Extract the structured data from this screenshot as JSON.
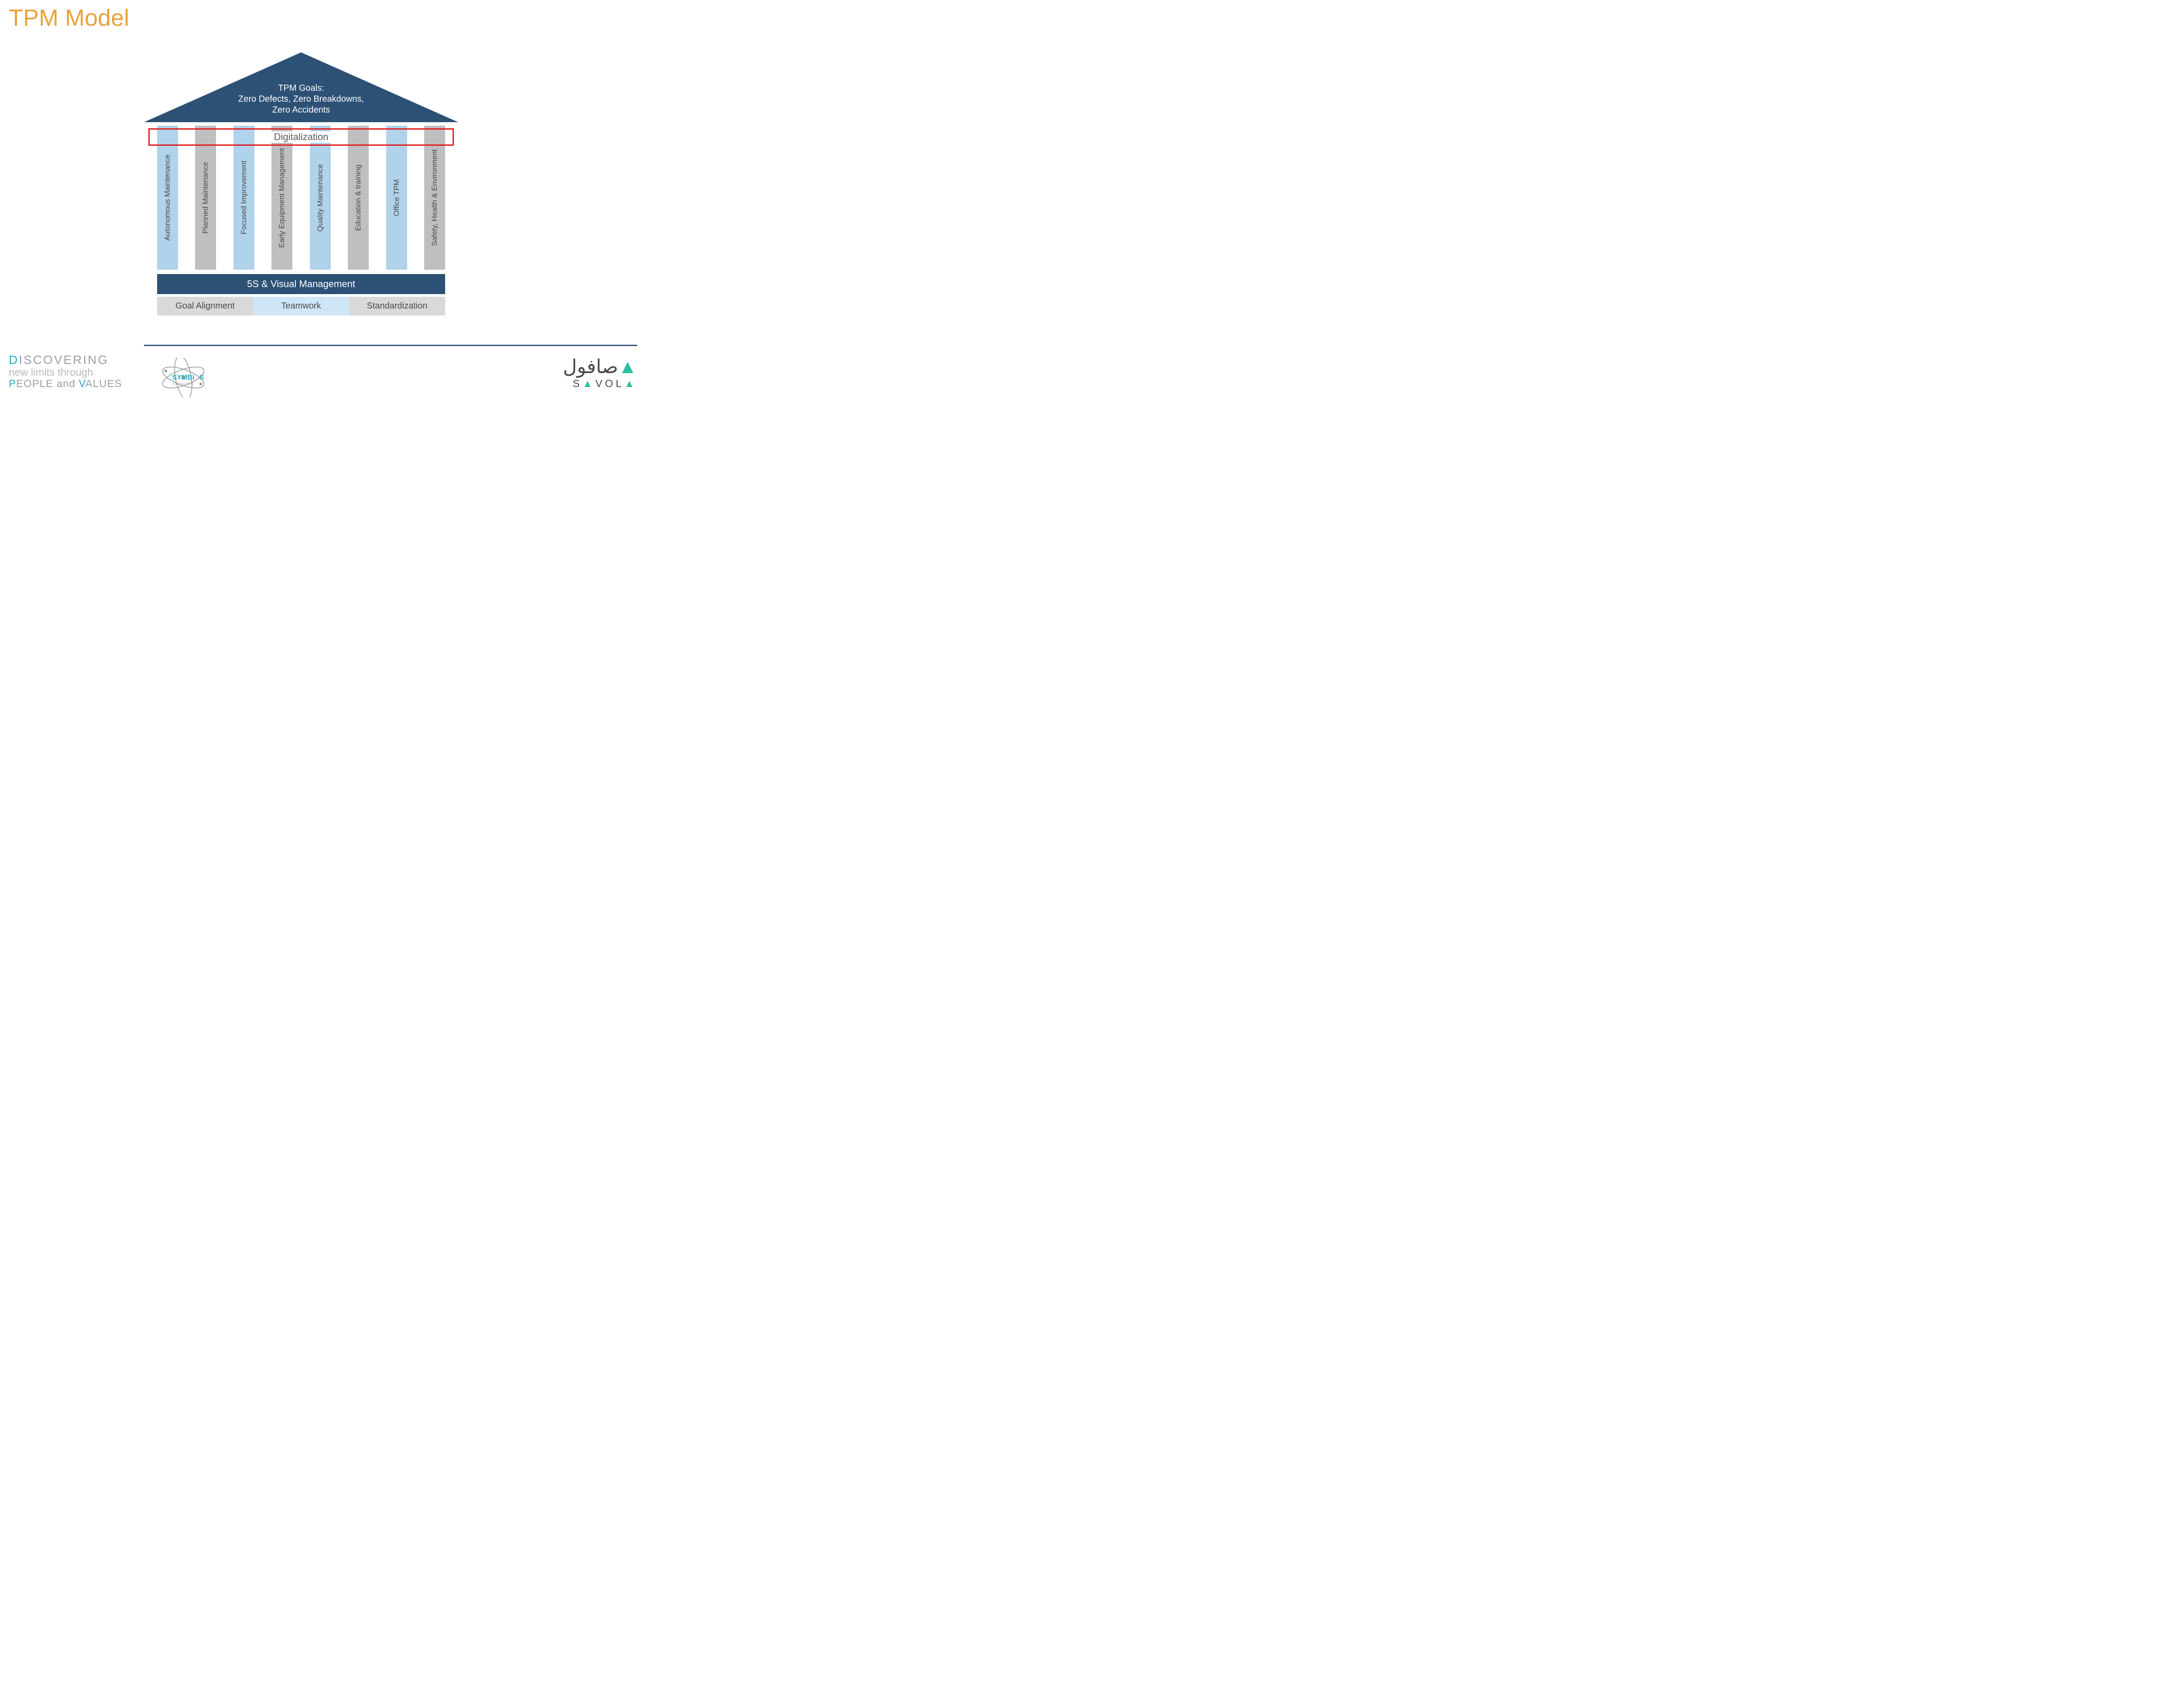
{
  "title": "TPM Model",
  "colors": {
    "title": "#e8a33d",
    "roof": "#2d5175",
    "roof_text": "#ffffff",
    "pillar_blue": "#b0d2ea",
    "pillar_grey": "#bfbfbf",
    "pillar_text": "#4a4a4a",
    "highlight_border": "#e11b1b",
    "highlight_text": "#5a5a5a",
    "base1_bg": "#2d5175",
    "base1_text": "#ffffff",
    "base2_grey": "#d9d9d9",
    "base2_blue": "#cfe6f7",
    "base2_text": "#4a4a4a",
    "footer_line": "#2d5175",
    "tagline_accent": "#2aa7c9",
    "tagline_grey": "#9aa0a6",
    "savola_accent": "#2bbfa0",
    "background": "#ffffff"
  },
  "roof": {
    "line1": "TPM Goals:",
    "line2": "Zero Defects, Zero Breakdowns,",
    "line3": "Zero Accidents"
  },
  "highlight": {
    "label": "Digitalization"
  },
  "pillars": [
    {
      "label": "Autonomous Maintenance",
      "color": "#b0d2ea"
    },
    {
      "label": "Planned Maintenance",
      "color": "#bfbfbf"
    },
    {
      "label": "Focused Improvement",
      "color": "#b0d2ea"
    },
    {
      "label": "Early Equipment Management",
      "color": "#bfbfbf"
    },
    {
      "label": "Quality Maintenance",
      "color": "#b0d2ea"
    },
    {
      "label": "Education & training",
      "color": "#bfbfbf"
    },
    {
      "label": "Office TPM",
      "color": "#b0d2ea"
    },
    {
      "label": "Safety, Health & Environment",
      "color": "#bfbfbf"
    }
  ],
  "base1": "5S & Visual Management",
  "base2": [
    {
      "label": "Goal Alignment",
      "bg": "#d9d9d9"
    },
    {
      "label": "Teamwork",
      "bg": "#cfe6f7"
    },
    {
      "label": "Standardization",
      "bg": "#d9d9d9"
    }
  ],
  "tagline": {
    "line1_pre": "D",
    "line1_rest": "ISCOVERING",
    "line2": "new limits through",
    "line3_p": "P",
    "line3_mid1": "EOPLE and",
    "line3_v": "V",
    "line3_mid2": "ALUES"
  },
  "symbios": {
    "name": "SYMBIOS",
    "sub": "CONSULTING"
  },
  "savola": {
    "arabic": "صافولا",
    "latin": "SAVOLA"
  }
}
